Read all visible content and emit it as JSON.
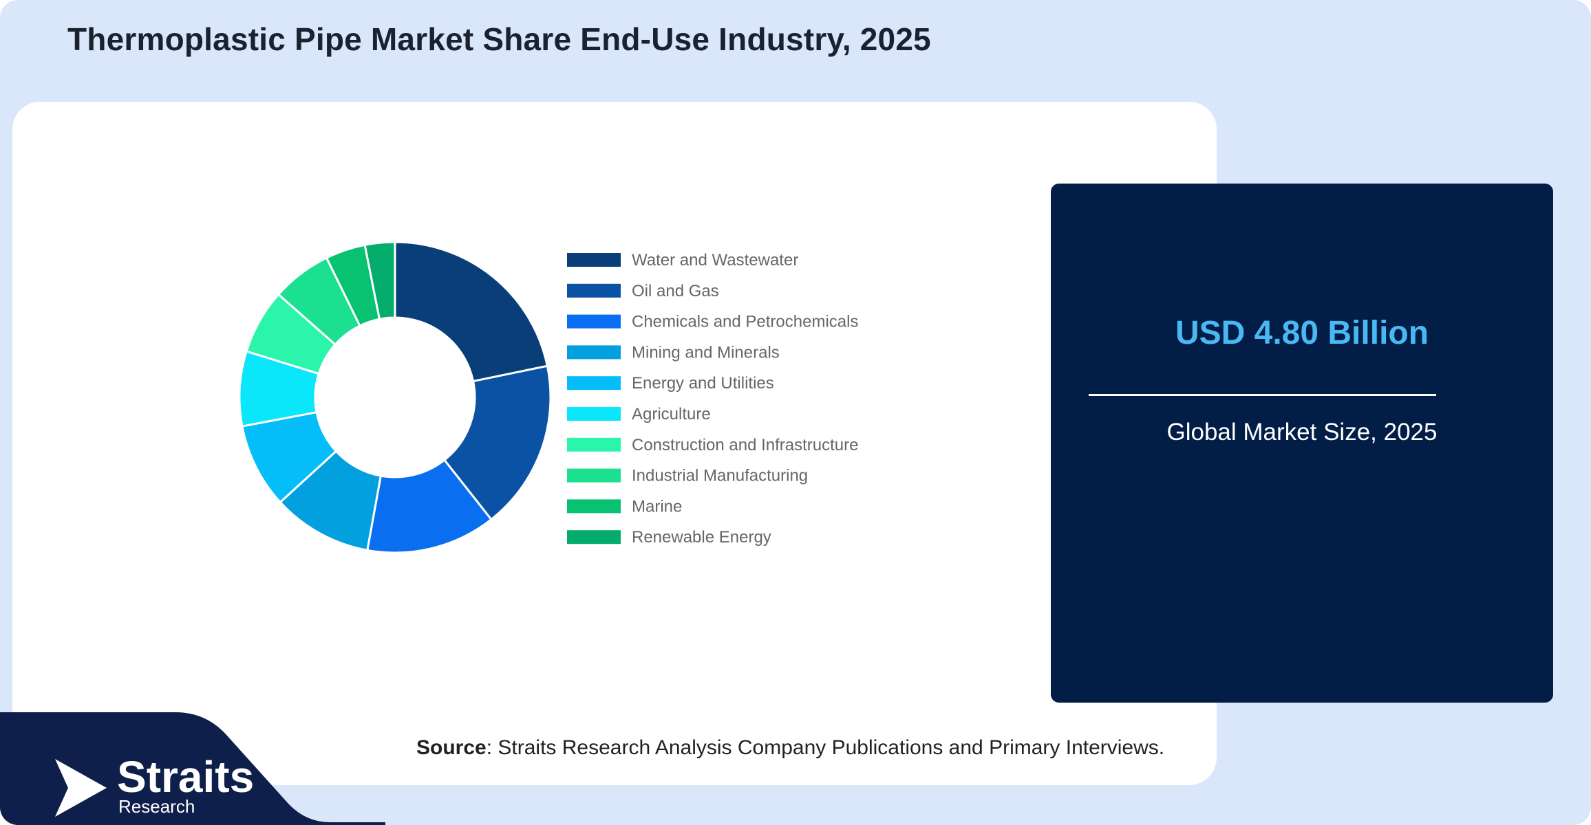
{
  "title": "Thermoplastic Pipe Market Share End-Use Industry, 2025",
  "chart_data": {
    "type": "pie",
    "donut": true,
    "title": "",
    "legend_position": "right",
    "categories": [
      "Water and Wastewater",
      "Oil and Gas",
      "Chemicals and Petrochemicals",
      "Mining and Minerals",
      "Energy and Utilities",
      "Agriculture",
      "Construction and Infrastructure",
      "Industrial Manufacturing",
      "Marine",
      "Renewable Energy"
    ],
    "values": [
      21,
      17,
      13,
      10,
      8.5,
      7.5,
      6.5,
      6,
      4,
      3
    ],
    "colors": [
      "#093e78",
      "#0b52a4",
      "#0a6ef0",
      "#03a0e0",
      "#05bdf8",
      "#0ae7fb",
      "#2af5ab",
      "#1ae090",
      "#09c271",
      "#04ad6b"
    ]
  },
  "stat": {
    "value": "USD 4.80 Billion",
    "label": "Global Market Size, 2025"
  },
  "source": {
    "label": "Source",
    "text": ": Straits Research Analysis Company Publications and Primary Interviews."
  },
  "brand": {
    "name": "Straits",
    "sub": "Research"
  }
}
